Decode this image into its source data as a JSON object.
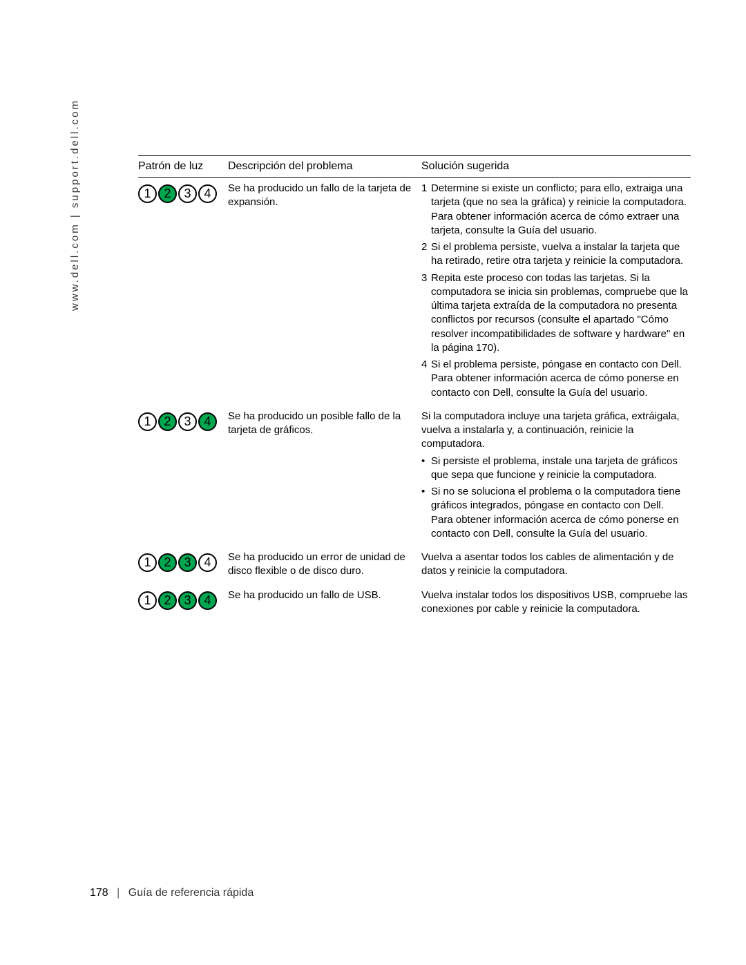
{
  "sidebar": {
    "text": "www.dell.com | support.dell.com"
  },
  "table": {
    "headers": {
      "pattern": "Patrón de luz",
      "description": "Descripción del problema",
      "solution": "Solución sugerida"
    },
    "rows": [
      {
        "lights": [
          "off",
          "on",
          "off",
          "off"
        ],
        "numbers": [
          "1",
          "2",
          "3",
          "4"
        ],
        "description": "Se ha producido un fallo de la tarjeta de expansión.",
        "solutions": [
          {
            "type": "num",
            "n": "1",
            "text": "Determine si existe un conflicto; para ello, extraiga una tarjeta (que no sea la gráfica) y reinicie la computadora. Para obtener información acerca de cómo extraer una tarjeta, consulte la Guía del usuario."
          },
          {
            "type": "num",
            "n": "2",
            "text": "Si el problema persiste, vuelva a instalar la tarjeta que ha retirado, retire otra tarjeta y reinicie la computadora."
          },
          {
            "type": "num",
            "n": "3",
            "text": "Repita este proceso con todas las tarjetas. Si la computadora se inicia sin problemas, compruebe que la última tarjeta extraída de la computadora no presenta conflictos por recursos (consulte el apartado \"Cómo resolver incompatibilidades de software y hardware\" en la página 170)."
          },
          {
            "type": "num",
            "n": "4",
            "text": "Si el problema persiste, póngase en contacto con Dell. Para obtener información acerca de cómo ponerse en contacto con Dell, consulte la Guía del usuario."
          }
        ]
      },
      {
        "lights": [
          "off",
          "on",
          "off",
          "on"
        ],
        "numbers": [
          "1",
          "2",
          "3",
          "4"
        ],
        "description": "Se ha producido un posible fallo de la tarjeta de gráficos.",
        "solutions": [
          {
            "type": "plain",
            "text": "Si la computadora incluye una tarjeta gráfica, extráigala, vuelva a instalarla y, a continuación, reinicie la computadora."
          },
          {
            "type": "bullet",
            "text": "Si persiste el problema, instale una tarjeta de gráficos que sepa que funcione y reinicie la computadora."
          },
          {
            "type": "bullet",
            "text": "Si no se soluciona el problema o la computadora tiene gráficos integrados, póngase en contacto con Dell. Para obtener información acerca de cómo ponerse en contacto con Dell, consulte la Guía del usuario."
          }
        ]
      },
      {
        "lights": [
          "off",
          "on",
          "on",
          "off"
        ],
        "numbers": [
          "1",
          "2",
          "3",
          "4"
        ],
        "description": "Se ha producido un error de unidad de disco flexible o de disco duro.",
        "solutions": [
          {
            "type": "plain",
            "text": "Vuelva a asentar todos los cables de alimentación y de datos y reinicie la computadora."
          }
        ]
      },
      {
        "lights": [
          "off",
          "on",
          "on",
          "on"
        ],
        "numbers": [
          "1",
          "2",
          "3",
          "4"
        ],
        "description": "Se ha producido un fallo de USB.",
        "solutions": [
          {
            "type": "plain",
            "text": "Vuelva instalar todos los dispositivos USB, compruebe las conexiones por cable y reinicie la computadora."
          }
        ]
      }
    ]
  },
  "footer": {
    "page_number": "178",
    "divider": "|",
    "title": "Guía de referencia rápida"
  },
  "colors": {
    "light_on": "#00a650",
    "light_off": "#ffffff",
    "border": "#000000",
    "background": "#ffffff"
  }
}
